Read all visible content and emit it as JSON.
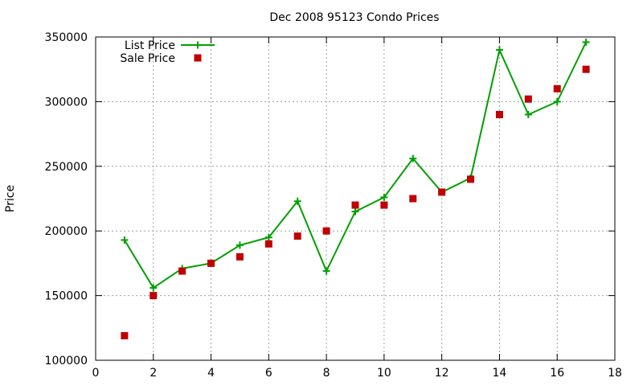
{
  "chart_data": {
    "type": "line",
    "title": "Dec 2008 95123 Condo Prices",
    "xlabel": "",
    "ylabel": "Price",
    "xlim": [
      0,
      18
    ],
    "ylim": [
      100000,
      350000
    ],
    "x_ticks": [
      0,
      2,
      4,
      6,
      8,
      10,
      12,
      14,
      16,
      18
    ],
    "y_ticks": [
      100000,
      150000,
      200000,
      250000,
      300000,
      350000
    ],
    "grid": true,
    "legend_position": "top-left",
    "series": [
      {
        "name": "List Price",
        "style": "line+points",
        "marker": "plus",
        "color": "#00a000",
        "x": [
          1,
          2,
          3,
          4,
          5,
          6,
          7,
          8,
          9,
          10,
          11,
          12,
          13,
          14,
          15,
          16,
          17
        ],
        "y": [
          193000,
          156000,
          171000,
          175000,
          189000,
          195000,
          223000,
          169000,
          215000,
          226000,
          256000,
          230000,
          241000,
          340000,
          290000,
          300000,
          346000
        ]
      },
      {
        "name": "Sale Price",
        "style": "points",
        "marker": "square",
        "color": "#c00000",
        "x": [
          1,
          2,
          3,
          4,
          5,
          6,
          7,
          8,
          9,
          10,
          11,
          12,
          13,
          14,
          15,
          16,
          17
        ],
        "y": [
          119000,
          150000,
          169000,
          175000,
          180000,
          190000,
          196000,
          200000,
          220000,
          220000,
          225000,
          230000,
          240000,
          290000,
          302000,
          310000,
          325000
        ]
      }
    ]
  }
}
